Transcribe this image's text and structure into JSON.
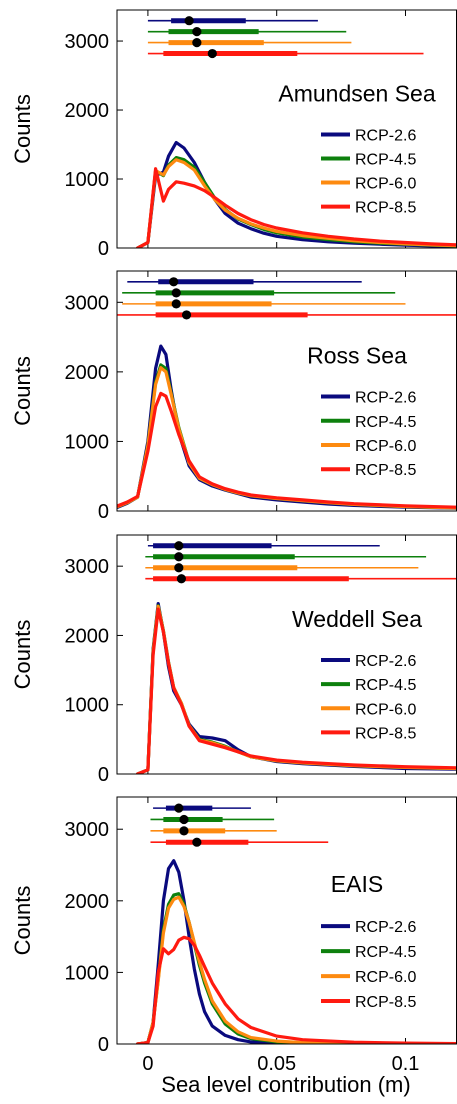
{
  "figure": {
    "xlabel": "Sea level contribution (m)",
    "ylabel": "Counts",
    "xlim": [
      -0.012,
      0.12
    ],
    "ylim": [
      0,
      3450
    ],
    "xticks": [
      0,
      0.05,
      0.1
    ],
    "xtick_labels": [
      "0",
      "0.05",
      "0.1"
    ],
    "yticks": [
      0,
      1000,
      2000,
      3000
    ],
    "ytick_labels": [
      "0",
      "1000",
      "2000",
      "3000"
    ],
    "legend_position": "right"
  },
  "colors": {
    "RCP-2.6": "#0a0a7e",
    "RCP-4.5": "#0d800d",
    "RCP-6.0": "#fd8a10",
    "RCP-8.5": "#ff1a10"
  },
  "chart_data": [
    {
      "type": "line",
      "title": "Amundsen Sea",
      "series": [
        {
          "name": "RCP-2.6",
          "x": [
            -0.004,
            0,
            0.003,
            0.006,
            0.008,
            0.011,
            0.014,
            0.018,
            0.022,
            0.026,
            0.03,
            0.035,
            0.04,
            0.045,
            0.05,
            0.06,
            0.07,
            0.08,
            0.09,
            0.1,
            0.11,
            0.12
          ],
          "y": [
            0,
            80,
            1050,
            1100,
            1330,
            1530,
            1450,
            1240,
            950,
            700,
            500,
            360,
            280,
            215,
            170,
            120,
            90,
            70,
            55,
            40,
            30,
            25
          ]
        },
        {
          "name": "RCP-4.5",
          "x": [
            -0.004,
            0,
            0.003,
            0.006,
            0.008,
            0.011,
            0.014,
            0.018,
            0.022,
            0.026,
            0.03,
            0.035,
            0.04,
            0.045,
            0.05,
            0.06,
            0.07,
            0.08,
            0.09,
            0.1,
            0.11,
            0.12
          ],
          "y": [
            0,
            80,
            1120,
            1050,
            1200,
            1310,
            1280,
            1170,
            950,
            720,
            560,
            420,
            340,
            270,
            220,
            160,
            120,
            90,
            70,
            55,
            40,
            30
          ]
        },
        {
          "name": "RCP-6.0",
          "x": [
            -0.004,
            0,
            0.003,
            0.006,
            0.008,
            0.011,
            0.014,
            0.018,
            0.022,
            0.026,
            0.03,
            0.035,
            0.04,
            0.045,
            0.05,
            0.06,
            0.07,
            0.08,
            0.09,
            0.1,
            0.11,
            0.12
          ],
          "y": [
            0,
            80,
            1120,
            1060,
            1180,
            1280,
            1240,
            1130,
            900,
            700,
            550,
            430,
            350,
            290,
            240,
            180,
            140,
            105,
            80,
            60,
            45,
            35
          ]
        },
        {
          "name": "RCP-8.5",
          "x": [
            -0.004,
            0,
            0.003,
            0.006,
            0.008,
            0.011,
            0.014,
            0.018,
            0.022,
            0.026,
            0.03,
            0.035,
            0.04,
            0.045,
            0.05,
            0.06,
            0.07,
            0.08,
            0.09,
            0.1,
            0.11,
            0.12
          ],
          "y": [
            0,
            80,
            1150,
            680,
            850,
            960,
            940,
            900,
            830,
            730,
            620,
            500,
            410,
            340,
            290,
            220,
            170,
            130,
            100,
            80,
            60,
            45
          ]
        }
      ],
      "ranges": [
        {
          "name": "RCP-2.6",
          "median": 0.016,
          "thick": [
            0.009,
            0.038
          ],
          "thin": [
            0.0,
            0.066
          ]
        },
        {
          "name": "RCP-4.5",
          "median": 0.019,
          "thick": [
            0.008,
            0.043
          ],
          "thin": [
            0.0,
            0.077
          ]
        },
        {
          "name": "RCP-6.0",
          "median": 0.019,
          "thick": [
            0.008,
            0.045
          ],
          "thin": [
            0.0,
            0.079
          ]
        },
        {
          "name": "RCP-8.5",
          "median": 0.025,
          "thick": [
            0.006,
            0.058
          ],
          "thin": [
            0.0,
            0.107
          ]
        }
      ]
    },
    {
      "type": "line",
      "title": "Ross Sea",
      "series": [
        {
          "name": "RCP-2.6",
          "x": [
            -0.012,
            -0.008,
            -0.004,
            0,
            0.003,
            0.005,
            0.007,
            0.009,
            0.012,
            0.016,
            0.02,
            0.025,
            0.03,
            0.035,
            0.04,
            0.05,
            0.06,
            0.07,
            0.08,
            0.1,
            0.12
          ],
          "y": [
            50,
            110,
            200,
            1000,
            2050,
            2370,
            2250,
            1750,
            1120,
            650,
            450,
            360,
            300,
            250,
            200,
            160,
            130,
            100,
            80,
            55,
            40
          ]
        },
        {
          "name": "RCP-4.5",
          "x": [
            -0.012,
            -0.008,
            -0.004,
            0,
            0.003,
            0.005,
            0.007,
            0.009,
            0.012,
            0.016,
            0.02,
            0.025,
            0.03,
            0.035,
            0.04,
            0.05,
            0.06,
            0.07,
            0.08,
            0.1,
            0.12
          ],
          "y": [
            60,
            120,
            200,
            950,
            1850,
            2100,
            2050,
            1700,
            1200,
            700,
            470,
            380,
            310,
            260,
            220,
            180,
            150,
            120,
            95,
            65,
            45
          ]
        },
        {
          "name": "RCP-6.0",
          "x": [
            -0.012,
            -0.008,
            -0.004,
            0,
            0.003,
            0.005,
            0.007,
            0.009,
            0.012,
            0.016,
            0.02,
            0.025,
            0.03,
            0.035,
            0.04,
            0.05,
            0.06,
            0.07,
            0.08,
            0.1,
            0.12
          ],
          "y": [
            60,
            120,
            200,
            940,
            1820,
            2060,
            2000,
            1680,
            1180,
            690,
            470,
            380,
            310,
            260,
            220,
            180,
            150,
            120,
            95,
            65,
            45
          ]
        },
        {
          "name": "RCP-8.5",
          "x": [
            -0.012,
            -0.008,
            -0.004,
            0,
            0.003,
            0.005,
            0.007,
            0.009,
            0.012,
            0.016,
            0.02,
            0.025,
            0.03,
            0.035,
            0.04,
            0.05,
            0.06,
            0.07,
            0.08,
            0.1,
            0.12
          ],
          "y": [
            70,
            130,
            210,
            860,
            1500,
            1690,
            1650,
            1440,
            1100,
            720,
            490,
            390,
            320,
            270,
            230,
            190,
            160,
            130,
            105,
            75,
            55
          ]
        }
      ],
      "ranges": [
        {
          "name": "RCP-2.6",
          "median": 0.01,
          "thick": [
            0.004,
            0.041
          ],
          "thin": [
            -0.008,
            0.083
          ]
        },
        {
          "name": "RCP-4.5",
          "median": 0.011,
          "thick": [
            0.003,
            0.049
          ],
          "thin": [
            -0.01,
            0.096
          ]
        },
        {
          "name": "RCP-6.0",
          "median": 0.011,
          "thick": [
            0.003,
            0.048
          ],
          "thin": [
            -0.01,
            0.1
          ]
        },
        {
          "name": "RCP-8.5",
          "median": 0.015,
          "thick": [
            0.003,
            0.062
          ],
          "thin": [
            -0.012,
            0.12
          ]
        }
      ]
    },
    {
      "type": "line",
      "title": "Weddell Sea",
      "series": [
        {
          "name": "RCP-2.6",
          "x": [
            -0.004,
            0,
            0.002,
            0.004,
            0.006,
            0.008,
            0.01,
            0.013,
            0.016,
            0.02,
            0.025,
            0.03,
            0.035,
            0.04,
            0.05,
            0.06,
            0.08,
            0.1,
            0.12
          ],
          "y": [
            0,
            60,
            1800,
            2460,
            2050,
            1550,
            1200,
            1000,
            720,
            540,
            520,
            480,
            350,
            250,
            180,
            150,
            110,
            80,
            70
          ]
        },
        {
          "name": "RCP-4.5",
          "x": [
            -0.004,
            0,
            0.002,
            0.004,
            0.006,
            0.008,
            0.01,
            0.013,
            0.016,
            0.02,
            0.025,
            0.03,
            0.035,
            0.04,
            0.05,
            0.06,
            0.08,
            0.1,
            0.12
          ],
          "y": [
            0,
            60,
            1780,
            2430,
            2070,
            1620,
            1250,
            1020,
            700,
            500,
            460,
            400,
            320,
            250,
            190,
            160,
            120,
            95,
            80
          ]
        },
        {
          "name": "RCP-6.0",
          "x": [
            -0.004,
            0,
            0.002,
            0.004,
            0.006,
            0.008,
            0.01,
            0.013,
            0.016,
            0.02,
            0.025,
            0.03,
            0.035,
            0.04,
            0.05,
            0.06,
            0.08,
            0.1,
            0.12
          ],
          "y": [
            0,
            60,
            1760,
            2420,
            2060,
            1610,
            1250,
            1020,
            700,
            490,
            450,
            390,
            320,
            250,
            190,
            160,
            120,
            95,
            80
          ]
        },
        {
          "name": "RCP-8.5",
          "x": [
            -0.004,
            0,
            0.002,
            0.004,
            0.006,
            0.008,
            0.01,
            0.013,
            0.016,
            0.02,
            0.025,
            0.03,
            0.035,
            0.04,
            0.05,
            0.06,
            0.08,
            0.1,
            0.12
          ],
          "y": [
            0,
            60,
            1720,
            2380,
            2050,
            1600,
            1240,
            1000,
            690,
            480,
            430,
            380,
            320,
            260,
            200,
            170,
            130,
            105,
            90
          ]
        }
      ],
      "ranges": [
        {
          "name": "RCP-2.6",
          "median": 0.012,
          "thick": [
            0.002,
            0.048
          ],
          "thin": [
            0.0,
            0.09
          ]
        },
        {
          "name": "RCP-4.5",
          "median": 0.012,
          "thick": [
            0.002,
            0.057
          ],
          "thin": [
            -0.001,
            0.108
          ]
        },
        {
          "name": "RCP-6.0",
          "median": 0.012,
          "thick": [
            0.002,
            0.058
          ],
          "thin": [
            -0.001,
            0.105
          ]
        },
        {
          "name": "RCP-8.5",
          "median": 0.013,
          "thick": [
            0.002,
            0.078
          ],
          "thin": [
            -0.001,
            0.12
          ]
        }
      ]
    },
    {
      "type": "line",
      "title": "EAIS",
      "series": [
        {
          "name": "RCP-2.6",
          "x": [
            -0.004,
            0,
            0.002,
            0.004,
            0.006,
            0.008,
            0.01,
            0.012,
            0.014,
            0.016,
            0.018,
            0.02,
            0.022,
            0.025,
            0.03,
            0.035,
            0.04,
            0.05,
            0.06,
            0.08,
            0.1,
            0.12
          ],
          "y": [
            0,
            20,
            300,
            1100,
            2000,
            2450,
            2560,
            2400,
            2000,
            1500,
            1050,
            700,
            450,
            250,
            120,
            60,
            30,
            15,
            8,
            3,
            2,
            1
          ]
        },
        {
          "name": "RCP-4.5",
          "x": [
            -0.004,
            0,
            0.002,
            0.004,
            0.006,
            0.008,
            0.01,
            0.012,
            0.014,
            0.016,
            0.018,
            0.02,
            0.022,
            0.025,
            0.03,
            0.035,
            0.04,
            0.05,
            0.06,
            0.08,
            0.1,
            0.12
          ],
          "y": [
            0,
            20,
            300,
            900,
            1600,
            1950,
            2080,
            2100,
            1950,
            1700,
            1400,
            1100,
            850,
            560,
            280,
            140,
            75,
            30,
            15,
            5,
            3,
            2
          ]
        },
        {
          "name": "RCP-6.0",
          "x": [
            -0.004,
            0,
            0.002,
            0.004,
            0.006,
            0.008,
            0.01,
            0.012,
            0.014,
            0.016,
            0.018,
            0.02,
            0.022,
            0.025,
            0.03,
            0.035,
            0.04,
            0.05,
            0.06,
            0.08,
            0.1,
            0.12
          ],
          "y": [
            0,
            20,
            300,
            880,
            1550,
            1900,
            2020,
            2050,
            1920,
            1700,
            1420,
            1150,
            900,
            600,
            320,
            170,
            90,
            40,
            20,
            8,
            4,
            2
          ]
        },
        {
          "name": "RCP-8.5",
          "x": [
            -0.004,
            0,
            0.002,
            0.004,
            0.006,
            0.008,
            0.01,
            0.012,
            0.014,
            0.016,
            0.018,
            0.02,
            0.022,
            0.025,
            0.03,
            0.035,
            0.04,
            0.05,
            0.06,
            0.08,
            0.1,
            0.12
          ],
          "y": [
            0,
            20,
            250,
            1000,
            1330,
            1260,
            1320,
            1450,
            1490,
            1470,
            1380,
            1240,
            1080,
            850,
            560,
            350,
            230,
            110,
            60,
            25,
            12,
            6
          ]
        }
      ],
      "ranges": [
        {
          "name": "RCP-2.6",
          "median": 0.012,
          "thick": [
            0.007,
            0.025
          ],
          "thin": [
            0.002,
            0.04
          ]
        },
        {
          "name": "RCP-4.5",
          "median": 0.014,
          "thick": [
            0.006,
            0.029
          ],
          "thin": [
            0.001,
            0.049
          ]
        },
        {
          "name": "RCP-6.0",
          "median": 0.014,
          "thick": [
            0.006,
            0.03
          ],
          "thin": [
            0.001,
            0.05
          ]
        },
        {
          "name": "RCP-8.5",
          "median": 0.019,
          "thick": [
            0.007,
            0.039
          ],
          "thin": [
            0.001,
            0.07
          ]
        }
      ]
    }
  ]
}
